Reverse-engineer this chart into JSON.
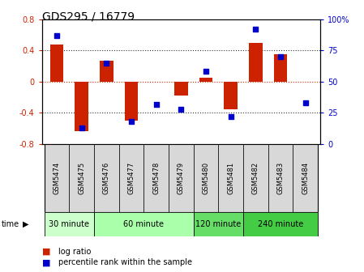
{
  "title": "GDS295 / 16779",
  "samples": [
    "GSM5474",
    "GSM5475",
    "GSM5476",
    "GSM5477",
    "GSM5478",
    "GSM5479",
    "GSM5480",
    "GSM5481",
    "GSM5482",
    "GSM5483",
    "GSM5484"
  ],
  "log_ratios": [
    0.47,
    -0.63,
    0.27,
    -0.5,
    0.0,
    -0.18,
    0.05,
    -0.35,
    0.5,
    0.35,
    0.0
  ],
  "percentile_ranks": [
    87,
    13,
    65,
    18,
    32,
    28,
    58,
    22,
    92,
    70,
    33
  ],
  "ylim_left": [
    -0.8,
    0.8
  ],
  "ylim_right": [
    0,
    100
  ],
  "yticks_left": [
    -0.8,
    -0.4,
    0.0,
    0.4,
    0.8
  ],
  "yticks_right": [
    0,
    25,
    50,
    75,
    100
  ],
  "ytick_labels_left": [
    "-0.8",
    "-0.4",
    "0",
    "0.4",
    "0.8"
  ],
  "ytick_labels_right": [
    "0",
    "25",
    "50",
    "75",
    "100%"
  ],
  "bar_color": "#cc2200",
  "dot_color": "#0000cc",
  "zero_line_color": "#cc2200",
  "gridline_color": "#333333",
  "groups": [
    {
      "label": "30 minute",
      "samples": [
        0,
        1
      ],
      "color": "#ccffcc"
    },
    {
      "label": "60 minute",
      "samples": [
        2,
        3,
        4,
        5
      ],
      "color": "#aaffaa"
    },
    {
      "label": "120 minute",
      "samples": [
        6,
        7
      ],
      "color": "#66dd66"
    },
    {
      "label": "240 minute",
      "samples": [
        8,
        9,
        10
      ],
      "color": "#44cc44"
    }
  ],
  "time_label": "time",
  "legend_bar_label": "log ratio",
  "legend_dot_label": "percentile rank within the sample",
  "bar_width": 0.55,
  "label_cell_color": "#d8d8d8",
  "background_color": "#ffffff"
}
